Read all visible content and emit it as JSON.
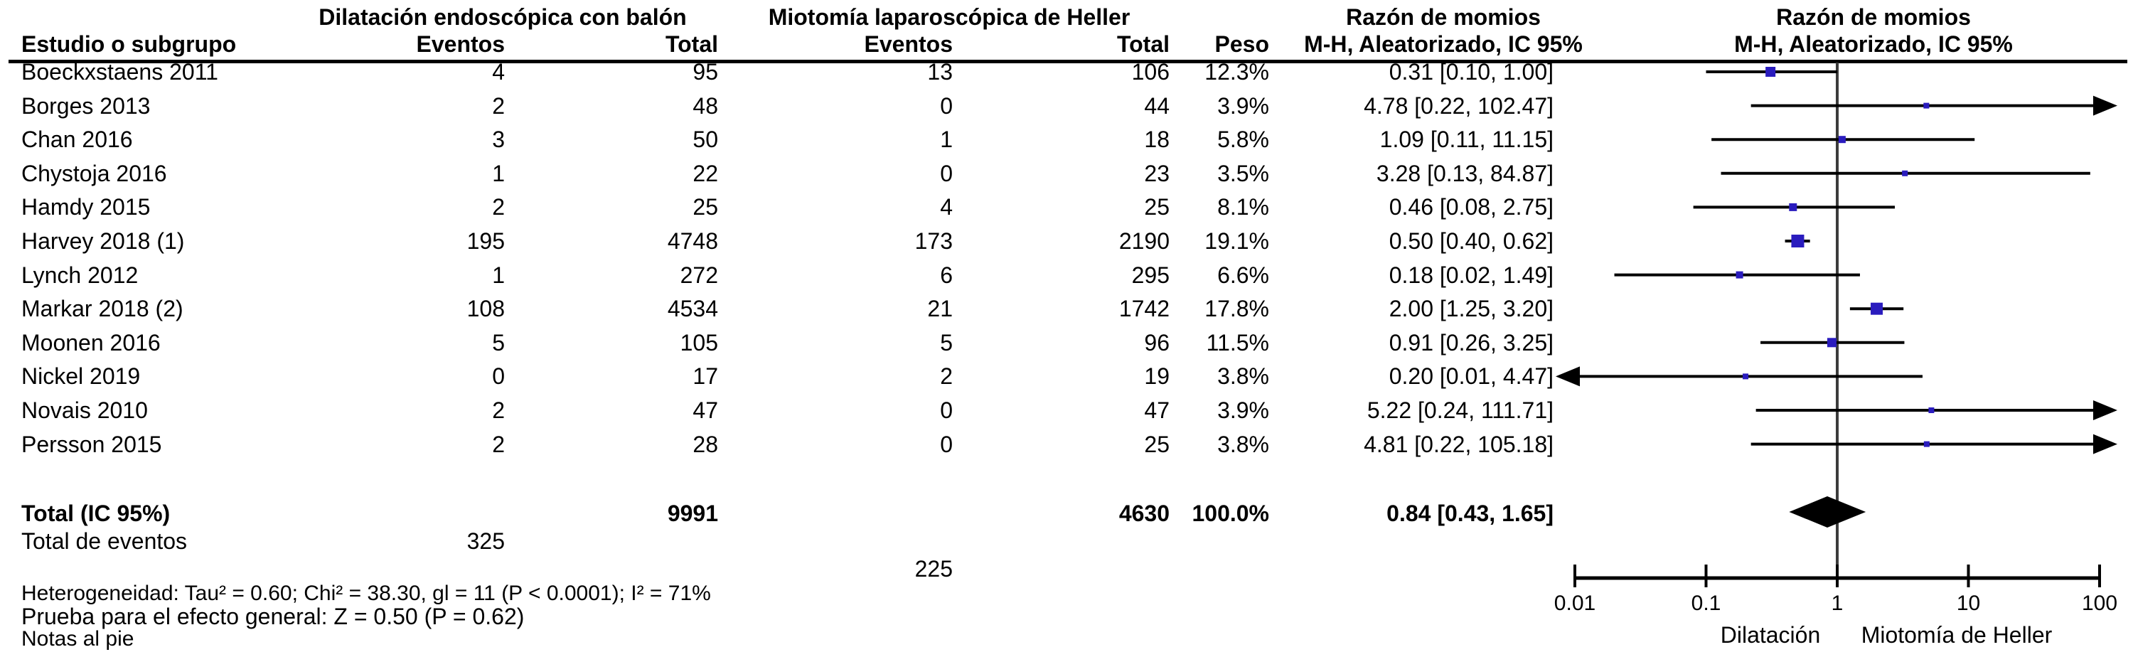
{
  "header": {
    "study_col": "Estudio o subgrupo",
    "group1": "Dilatación endoscópica con balón",
    "group2": "Miotomía laparoscópica de Heller",
    "events": "Eventos",
    "total": "Total",
    "weight": "Peso",
    "or_line1": "Razón de momios",
    "or_line2": "M-H, Aleatorizado, IC 95%"
  },
  "footer": {
    "heterogeneity": "Heterogeneidad: Tau² = 0.60; Chi² = 38.30, gl = 11 (P < 0.0001); I² = 71%",
    "overall_effect": "Prueba para el efecto general: Z = 0.50 (P = 0.62)",
    "footnotes": "Notas al pie"
  },
  "chart_data": {
    "type": "forest",
    "effect_measure": "Razón de momios, M-H, Aleatorizado, IC 95%",
    "x_scale": "log",
    "x_range": [
      0.01,
      100
    ],
    "x_ticks": [
      "0.01",
      "0.1",
      "1",
      "10",
      "100"
    ],
    "xlabel_left": "Dilatación",
    "xlabel_right": "Miotomía de Heller",
    "square_color": "#2a1cbe",
    "diamond_color": "#000000",
    "line_color": "#000000",
    "studies": [
      {
        "name": "Boeckxstaens 2011",
        "events1": "4",
        "total1": "95",
        "events2": "13",
        "total2": "106",
        "weight": 12.3,
        "weight_label": "12.3%",
        "or": 0.31,
        "ci_low": 0.1,
        "ci_high": 1.0,
        "or_label": "0.31 [0.10, 1.00]"
      },
      {
        "name": "Borges 2013",
        "events1": "2",
        "total1": "48",
        "events2": "0",
        "total2": "44",
        "weight": 3.9,
        "weight_label": "3.9%",
        "or": 4.78,
        "ci_low": 0.22,
        "ci_high": 102.47,
        "or_label": "4.78 [0.22, 102.47]"
      },
      {
        "name": "Chan 2016",
        "events1": "3",
        "total1": "50",
        "events2": "1",
        "total2": "18",
        "weight": 5.8,
        "weight_label": "5.8%",
        "or": 1.09,
        "ci_low": 0.11,
        "ci_high": 11.15,
        "or_label": "1.09 [0.11, 11.15]"
      },
      {
        "name": "Chystoja 2016",
        "events1": "1",
        "total1": "22",
        "events2": "0",
        "total2": "23",
        "weight": 3.5,
        "weight_label": "3.5%",
        "or": 3.28,
        "ci_low": 0.13,
        "ci_high": 84.87,
        "or_label": "3.28 [0.13, 84.87]"
      },
      {
        "name": "Hamdy 2015",
        "events1": "2",
        "total1": "25",
        "events2": "4",
        "total2": "25",
        "weight": 8.1,
        "weight_label": "8.1%",
        "or": 0.46,
        "ci_low": 0.08,
        "ci_high": 2.75,
        "or_label": "0.46 [0.08, 2.75]"
      },
      {
        "name": "Harvey 2018 (1)",
        "events1": "195",
        "total1": "4748",
        "events2": "173",
        "total2": "2190",
        "weight": 19.1,
        "weight_label": "19.1%",
        "or": 0.5,
        "ci_low": 0.4,
        "ci_high": 0.62,
        "or_label": "0.50 [0.40, 0.62]"
      },
      {
        "name": "Lynch 2012",
        "events1": "1",
        "total1": "272",
        "events2": "6",
        "total2": "295",
        "weight": 6.6,
        "weight_label": "6.6%",
        "or": 0.18,
        "ci_low": 0.02,
        "ci_high": 1.49,
        "or_label": "0.18 [0.02, 1.49]"
      },
      {
        "name": "Markar 2018 (2)",
        "events1": "108",
        "total1": "4534",
        "events2": "21",
        "total2": "1742",
        "weight": 17.8,
        "weight_label": "17.8%",
        "or": 2.0,
        "ci_low": 1.25,
        "ci_high": 3.2,
        "or_label": "2.00 [1.25, 3.20]"
      },
      {
        "name": "Moonen 2016",
        "events1": "5",
        "total1": "105",
        "events2": "5",
        "total2": "96",
        "weight": 11.5,
        "weight_label": "11.5%",
        "or": 0.91,
        "ci_low": 0.26,
        "ci_high": 3.25,
        "or_label": "0.91 [0.26, 3.25]"
      },
      {
        "name": "Nickel 2019",
        "events1": "0",
        "total1": "17",
        "events2": "2",
        "total2": "19",
        "weight": 3.8,
        "weight_label": "3.8%",
        "or": 0.2,
        "ci_low": 0.01,
        "ci_high": 4.47,
        "or_label": "0.20 [0.01, 4.47]"
      },
      {
        "name": "Novais 2010",
        "events1": "2",
        "total1": "47",
        "events2": "0",
        "total2": "47",
        "weight": 3.9,
        "weight_label": "3.9%",
        "or": 5.22,
        "ci_low": 0.24,
        "ci_high": 111.71,
        "or_label": "5.22 [0.24, 111.71]"
      },
      {
        "name": "Persson 2015",
        "events1": "2",
        "total1": "28",
        "events2": "0",
        "total2": "25",
        "weight": 3.8,
        "weight_label": "3.8%",
        "or": 4.81,
        "ci_low": 0.22,
        "ci_high": 105.18,
        "or_label": "4.81 [0.22, 105.18]"
      }
    ],
    "total": {
      "label": "Total (IC 95%)",
      "total1": "9991",
      "total2": "4630",
      "weight_label": "100.0%",
      "or": 0.84,
      "ci_low": 0.43,
      "ci_high": 1.65,
      "or_label": "0.84 [0.43, 1.65]",
      "events_label": "Total de eventos",
      "events1": "325",
      "events2": "225"
    }
  }
}
